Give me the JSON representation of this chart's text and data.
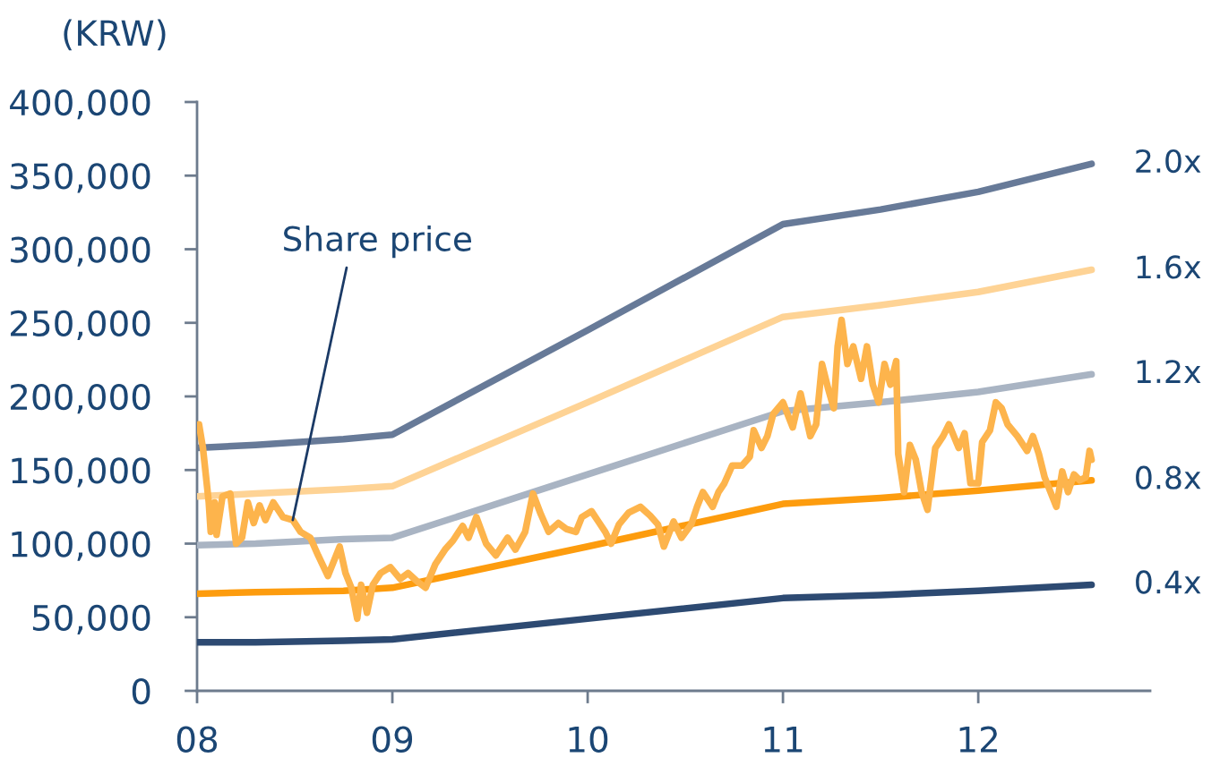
{
  "chart_data": {
    "type": "line",
    "ylabel": "(KRW)",
    "xlim": [
      2008,
      2012.88
    ],
    "xticks": [
      {
        "value": 2008,
        "label": "08"
      },
      {
        "value": 2009,
        "label": "09"
      },
      {
        "value": 2010,
        "label": "10"
      },
      {
        "value": 2011,
        "label": "11"
      },
      {
        "value": 2012,
        "label": "12"
      }
    ],
    "ylim": [
      0,
      400000
    ],
    "yticks": [
      0,
      {
        "value": 50000,
        "label": "50,000"
      },
      {
        "value": 100000,
        "label": "100,000"
      },
      {
        "value": 150000,
        "label": "150,000"
      },
      {
        "value": 200000,
        "label": "200,000"
      },
      {
        "value": 250000,
        "label": "250,000"
      },
      {
        "value": 300000,
        "label": "300,000"
      },
      {
        "value": 350000,
        "label": "350,000"
      },
      {
        "value": 400000,
        "label": "400,000"
      }
    ],
    "series": [
      {
        "name": "2.0x",
        "color": "#677a98",
        "x": [
          2008.0,
          2008.3,
          2008.75,
          2009.0,
          2010.0,
          2011.0,
          2011.5,
          2012.0,
          2012.58
        ],
        "values": [
          165000,
          167000,
          171000,
          174000,
          245000,
          317000,
          327000,
          339000,
          358000
        ]
      },
      {
        "name": "1.6x",
        "color": "#fed395",
        "x": [
          2008.0,
          2008.3,
          2008.75,
          2009.0,
          2010.0,
          2011.0,
          2011.5,
          2012.0,
          2012.58
        ],
        "values": [
          132000,
          134000,
          137000,
          139000,
          196000,
          254000,
          262000,
          271000,
          286000
        ]
      },
      {
        "name": "1.2x",
        "color": "#a9b4c3",
        "x": [
          2008.0,
          2008.3,
          2008.75,
          2009.0,
          2010.0,
          2011.0,
          2011.5,
          2012.0,
          2012.58
        ],
        "values": [
          99000,
          100000,
          103000,
          104000,
          147000,
          190000,
          196000,
          203000,
          215000
        ]
      },
      {
        "name": "0.8x",
        "color": "#fd9c0e",
        "x": [
          2008.0,
          2008.3,
          2008.75,
          2009.0,
          2010.0,
          2011.0,
          2011.5,
          2012.0,
          2012.58
        ],
        "values": [
          66000,
          67000,
          68000,
          70000,
          98000,
          127000,
          131000,
          136000,
          143000
        ]
      },
      {
        "name": "0.4x",
        "color": "#2d4a72",
        "x": [
          2008.0,
          2008.3,
          2008.75,
          2009.0,
          2010.0,
          2011.0,
          2011.5,
          2012.0,
          2012.58
        ],
        "values": [
          33000,
          33000,
          34000,
          35000,
          49000,
          63000,
          65000,
          68000,
          72000
        ]
      },
      {
        "color": "#fdb44c",
        "x": [
          2008.01,
          2008.03,
          2008.06,
          2008.07,
          2008.09,
          2008.1,
          2008.13,
          2008.17,
          2008.2,
          2008.23,
          2008.26,
          2008.29,
          2008.32,
          2008.35,
          2008.39,
          2008.44,
          2008.49,
          2008.53,
          2008.58,
          2008.62,
          2008.67,
          2008.73,
          2008.76,
          2008.79,
          2008.82,
          2008.84,
          2008.87,
          2008.9,
          2008.94,
          2008.99,
          2009.04,
          2009.08,
          2009.13,
          2009.17,
          2009.22,
          2009.27,
          2009.31,
          2009.36,
          2009.39,
          2009.43,
          2009.48,
          2009.53,
          2009.59,
          2009.63,
          2009.68,
          2009.72,
          2009.76,
          2009.8,
          2009.85,
          2009.89,
          2009.94,
          2009.97,
          2010.02,
          2010.06,
          2010.09,
          2010.12,
          2010.16,
          2010.21,
          2010.27,
          2010.32,
          2010.36,
          2010.39,
          2010.44,
          2010.48,
          2010.53,
          2010.56,
          2010.59,
          2010.64,
          2010.67,
          2010.7,
          2010.74,
          2010.79,
          2010.83,
          2010.85,
          2010.89,
          2010.92,
          2010.95,
          2011.0,
          2011.05,
          2011.09,
          2011.14,
          2011.17,
          2011.2,
          2011.23,
          2011.26,
          2011.28,
          2011.3,
          2011.33,
          2011.36,
          2011.4,
          2011.43,
          2011.46,
          2011.49,
          2011.52,
          2011.55,
          2011.58,
          2011.59,
          2011.62,
          2011.65,
          2011.68,
          2011.71,
          2011.74,
          2011.78,
          2011.82,
          2011.85,
          2011.9,
          2011.93,
          2011.96,
          2012.0,
          2012.02,
          2012.06,
          2012.09,
          2012.12,
          2012.15,
          2012.2,
          2012.25,
          2012.28,
          2012.31,
          2012.34,
          2012.37,
          2012.4,
          2012.43,
          2012.46,
          2012.49,
          2012.52,
          2012.55,
          2012.57,
          2012.58
        ],
        "values": [
          181000,
          165000,
          128000,
          108000,
          128000,
          106000,
          132000,
          134000,
          100000,
          104000,
          128000,
          114000,
          126000,
          116000,
          128000,
          118000,
          116000,
          108000,
          104000,
          92000,
          78000,
          98000,
          80000,
          70000,
          49000,
          72000,
          53000,
          72000,
          80000,
          84000,
          76000,
          80000,
          74000,
          70000,
          86000,
          96000,
          102000,
          112000,
          104000,
          118000,
          100000,
          92000,
          104000,
          96000,
          108000,
          134000,
          120000,
          108000,
          114000,
          110000,
          108000,
          118000,
          122000,
          114000,
          108000,
          100000,
          113000,
          121000,
          125000,
          119000,
          113000,
          98000,
          115000,
          104000,
          113000,
          125000,
          135000,
          125000,
          135000,
          141000,
          153000,
          153000,
          159000,
          177000,
          165000,
          173000,
          188000,
          196000,
          179000,
          202000,
          173000,
          181000,
          222000,
          206000,
          192000,
          234000,
          252000,
          222000,
          234000,
          212000,
          234000,
          208000,
          196000,
          222000,
          208000,
          224000,
          161000,
          135000,
          167000,
          157000,
          135000,
          123000,
          165000,
          173000,
          181000,
          165000,
          175000,
          141000,
          141000,
          169000,
          177000,
          196000,
          192000,
          181000,
          173000,
          163000,
          173000,
          161000,
          145000,
          135000,
          125000,
          149000,
          135000,
          147000,
          143000,
          145000,
          163000,
          157000
        ]
      }
    ],
    "annotations": [
      {
        "text": "Share price",
        "x": 2008.49,
        "y": 116000
      }
    ]
  }
}
